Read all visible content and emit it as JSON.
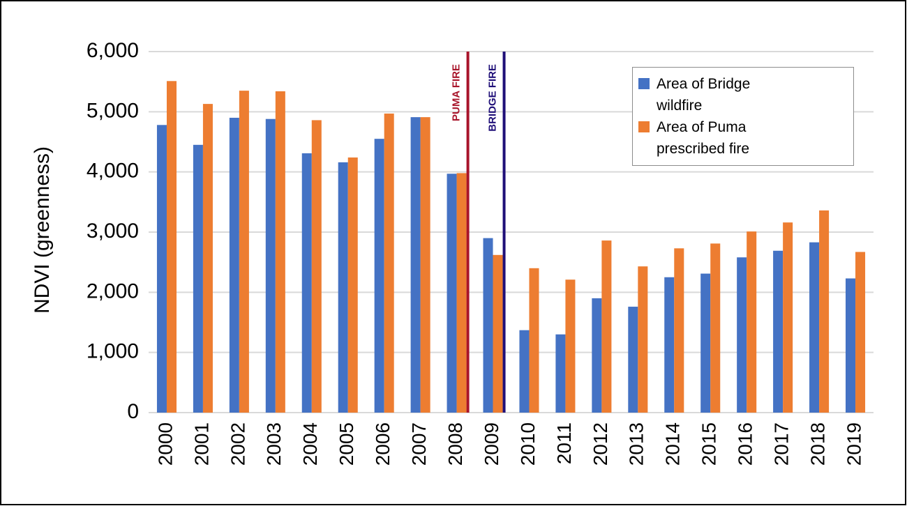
{
  "chart_data": {
    "type": "bar",
    "y_label": "NDVI (greenness)",
    "categories": [
      "2000",
      "2001",
      "2002",
      "2003",
      "2004",
      "2005",
      "2006",
      "2007",
      "2008",
      "2009",
      "2010",
      "2011",
      "2012",
      "2013",
      "2014",
      "2015",
      "2016",
      "2017",
      "2018",
      "2019"
    ],
    "series": [
      {
        "name": "Area of Bridge wildfire",
        "color": "#4472c4",
        "values": [
          4780,
          4450,
          4900,
          4880,
          4310,
          4160,
          4550,
          4910,
          3970,
          2900,
          1370,
          1300,
          1900,
          1760,
          2250,
          2310,
          2580,
          2690,
          2830,
          2230
        ]
      },
      {
        "name": "Area of Puma prescribed fire",
        "color": "#ed7d31",
        "values": [
          5510,
          5130,
          5350,
          5340,
          4860,
          4240,
          4970,
          4910,
          3980,
          2620,
          2400,
          2210,
          2860,
          2430,
          2730,
          2810,
          3010,
          3160,
          3360,
          2670
        ]
      }
    ],
    "annotations": [
      {
        "text": "PUMA FIRE",
        "category": "2008",
        "color": "#a8142a"
      },
      {
        "text": "BRIDGE FIRE",
        "category": "2009",
        "color": "#1f0f78"
      }
    ],
    "ylim": [
      0,
      6000
    ],
    "yticks": [
      0,
      {
        "value": 1000,
        "label": "1,000"
      },
      {
        "value": 2000,
        "label": "2,000"
      },
      {
        "value": 3000,
        "label": "3,000"
      },
      {
        "value": 4000,
        "label": "4,000"
      },
      {
        "value": 5000,
        "label": "5,000"
      },
      {
        "value": 6000,
        "label": "6,000"
      }
    ],
    "grid": true,
    "legend": "top-right"
  }
}
